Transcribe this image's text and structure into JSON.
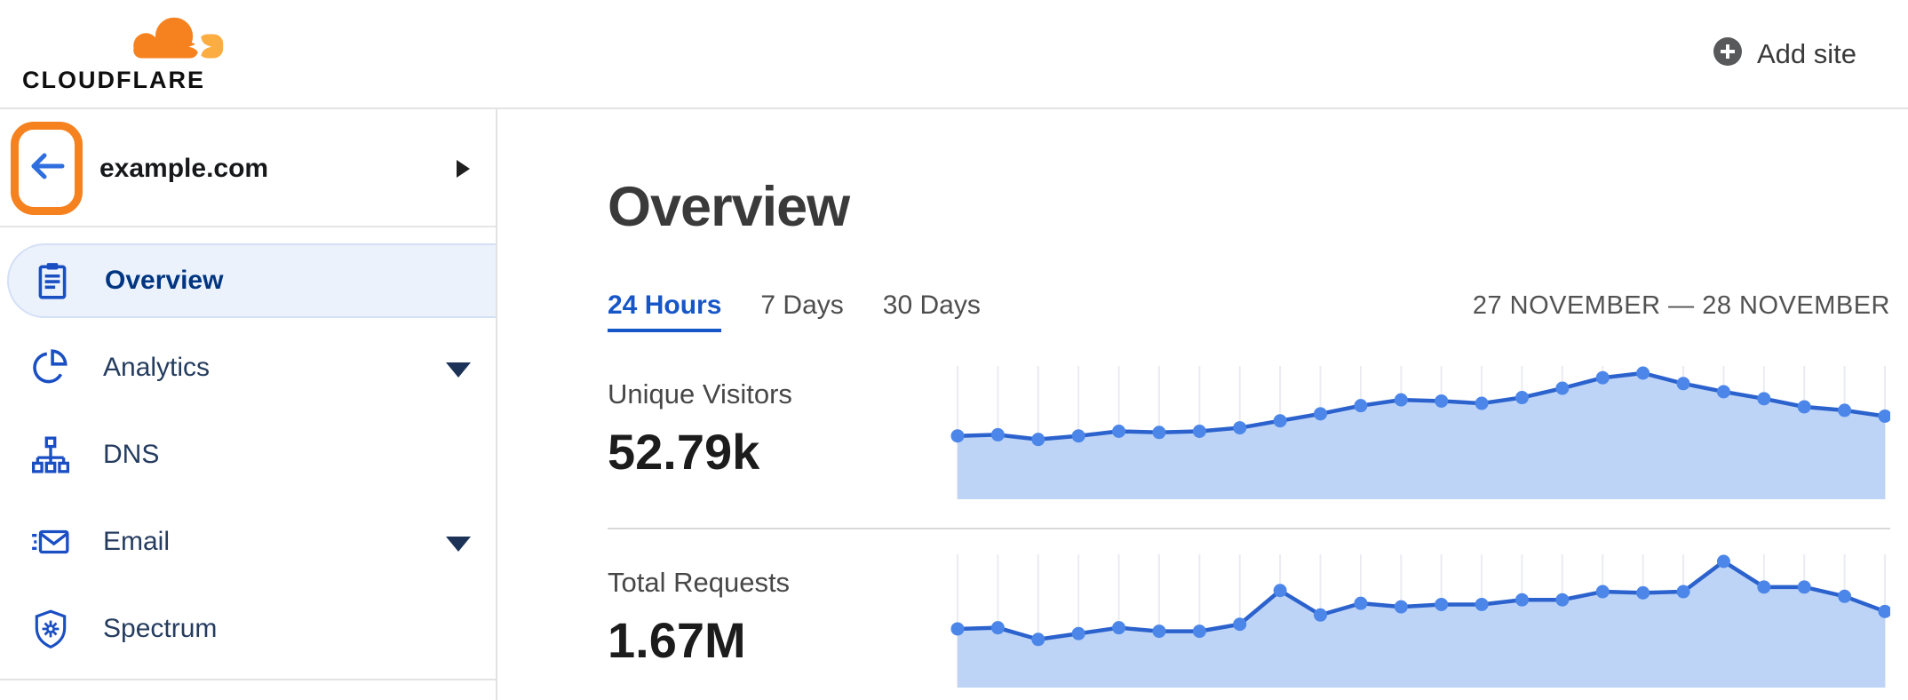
{
  "header": {
    "logo_text": "CLOUDFLARE",
    "add_site_label": "Add site"
  },
  "sidebar": {
    "site_name": "example.com",
    "back_button": "back-arrow",
    "items": [
      {
        "label": "Overview",
        "icon": "clipboard-icon",
        "selected": true,
        "has_caret": false
      },
      {
        "label": "Analytics",
        "icon": "pie-chart-icon",
        "selected": false,
        "has_caret": true
      },
      {
        "label": "DNS",
        "icon": "sitemap-icon",
        "selected": false,
        "has_caret": false
      },
      {
        "label": "Email",
        "icon": "envelope-icon",
        "selected": false,
        "has_caret": true
      },
      {
        "label": "Spectrum",
        "icon": "shield-icon",
        "selected": false,
        "has_caret": false
      }
    ]
  },
  "main": {
    "title": "Overview",
    "tabs": [
      {
        "label": "24 Hours",
        "active": true
      },
      {
        "label": "7 Days",
        "active": false
      },
      {
        "label": "30 Days",
        "active": false
      }
    ],
    "date_range": "27 NOVEMBER — 28 NOVEMBER",
    "metrics": [
      {
        "label": "Unique Visitors",
        "value": "52.79k"
      },
      {
        "label": "Total Requests",
        "value": "1.67M"
      }
    ]
  },
  "colors": {
    "brand_orange": "#f6821f",
    "brand_orange_light": "#fbad41",
    "link_blue": "#1656c9",
    "sidebar_icon_blue": "#1a4fc4",
    "selected_bg": "#ecf2fc",
    "selected_text": "#003681",
    "chart_line": "#2b62cd",
    "chart_dot": "#4c86e9",
    "chart_fill": "#bdd4f6",
    "chart_grid": "#ebecf1"
  },
  "chart_data": [
    {
      "type": "area",
      "title": "Unique Visitors",
      "total_label": "52.79k",
      "period": "24 Hours",
      "x": "hourly points, 27 November — 28 November",
      "relative_values": [
        46,
        47,
        43,
        46,
        50,
        49,
        50,
        53,
        59,
        65,
        72,
        77,
        76,
        74,
        79,
        87,
        96,
        100,
        91,
        84,
        78,
        71,
        68,
        63
      ],
      "ylim": [
        0,
        100
      ],
      "grid": "vertical-only",
      "legend": "none"
    },
    {
      "type": "area",
      "title": "Total Requests",
      "total_label": "1.67M",
      "period": "24 Hours",
      "x": "hourly points, 27 November — 28 November",
      "relative_values": [
        42,
        43,
        33,
        38,
        43,
        40,
        40,
        46,
        75,
        54,
        64,
        61,
        63,
        63,
        67,
        67,
        74,
        73,
        74,
        100,
        78,
        78,
        70,
        57
      ],
      "ylim": [
        0,
        100
      ],
      "grid": "vertical-only",
      "legend": "none"
    }
  ]
}
